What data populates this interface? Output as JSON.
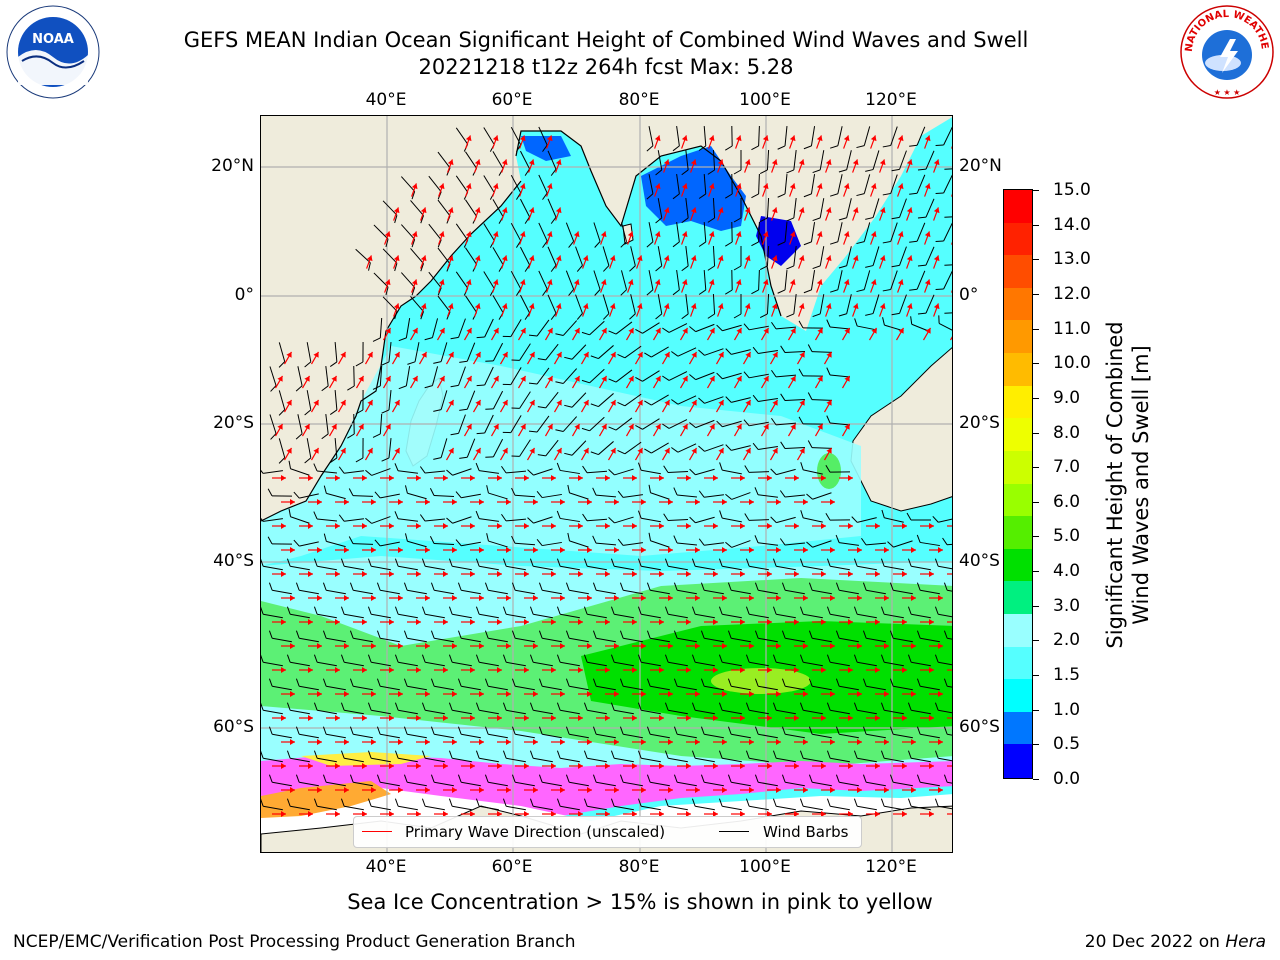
{
  "title": {
    "line1": "GEFS MEAN Indian Ocean Significant Height of Combined Wind Waves and Swell",
    "line2": "20221218 t12z 264h fcst   Max: 5.28"
  },
  "map": {
    "lon_ticks": [
      "40°E",
      "60°E",
      "80°E",
      "100°E",
      "120°E"
    ],
    "lat_ticks": [
      "20°N",
      "0°",
      "20°S",
      "40°S",
      "60°S"
    ],
    "colors": {
      "land": "#efecdc",
      "grid": "#b0b0b0",
      "coast": "#000000",
      "wave_arrow": "#ff0000",
      "wind_barb": "#000000",
      "ice_pink": "#ff66ff",
      "ice_white": "#ffffff"
    }
  },
  "colorbar": {
    "label_line1": "Significant Height of Combined",
    "label_line2": "Wind Waves and Swell [m]",
    "ticks": [
      "15.0",
      "14.0",
      "13.0",
      "12.0",
      "11.0",
      "10.0",
      "9.0",
      "8.0",
      "7.0",
      "6.0",
      "5.0",
      "4.0",
      "3.0",
      "2.0",
      "1.5",
      "1.0",
      "0.5",
      "0.0"
    ],
    "colors": [
      "#ff0000",
      "#ff2200",
      "#ff4d00",
      "#ff7700",
      "#ff9900",
      "#ffbb00",
      "#ffee00",
      "#eeff00",
      "#ccff00",
      "#99ff00",
      "#55ee00",
      "#00e000",
      "#00f080",
      "#99ffff",
      "#55ffff",
      "#00ffff",
      "#0077ff",
      "#0000ff"
    ]
  },
  "legend": {
    "primary_wave": "Primary Wave Direction (unscaled)",
    "wind_barbs": "Wind Barbs"
  },
  "caption": "Sea Ice Concentration > 15% is shown in pink to yellow",
  "footer": {
    "left": "NCEP/EMC/Verification Post Processing Product Generation Branch",
    "right_prefix": "20 Dec 2022 on ",
    "right_host": "Hera"
  },
  "logos": {
    "noaa_text": "NOAA",
    "nws_text": "NATIONAL WEATHER SERVICE"
  }
}
